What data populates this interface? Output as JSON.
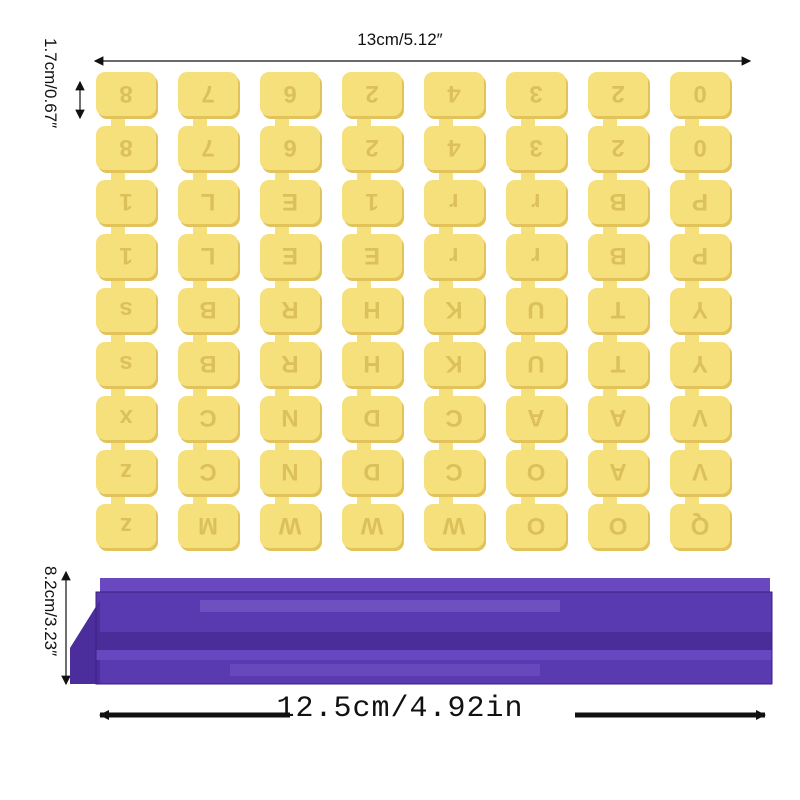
{
  "dimensions": {
    "top_width": "13cm/5.12″",
    "piece_height": "1.7cm/0.67″",
    "bar_height": "8.2cm/3.23″",
    "bar_width": "12.5cm/4.92in"
  },
  "colors": {
    "stamp_yellow": "#f6e07c",
    "stamp_shadow": "#e2c25a",
    "letter_shade": "#dcc05a",
    "bar_purple": "#5a3ab0",
    "bar_dark": "#432590",
    "bar_light": "#7a5cc8"
  },
  "stamp_sheet": {
    "columns": [
      [
        "8",
        "8",
        "1",
        "1",
        "s",
        "s",
        "x",
        "z",
        "z"
      ],
      [
        "7",
        "7",
        "L",
        "L",
        "B",
        "B",
        "C",
        "C",
        "M"
      ],
      [
        "6",
        "6",
        "E",
        "E",
        "R",
        "R",
        "N",
        "N",
        "W"
      ],
      [
        "2",
        "2",
        "1",
        "E",
        "H",
        "H",
        "D",
        "D",
        "W"
      ],
      [
        "4",
        "4",
        "r",
        "r",
        "K",
        "K",
        "C",
        "C",
        "W"
      ],
      [
        "3",
        "3",
        "r",
        "r",
        "U",
        "U",
        "A",
        "O",
        "O"
      ],
      [
        "2",
        "2",
        "B",
        "B",
        "T",
        "T",
        "A",
        "A",
        "O"
      ],
      [
        "0",
        "0",
        "P",
        "P",
        "Y",
        "Y",
        "V",
        "V",
        "Q"
      ]
    ]
  },
  "bar": {
    "shape": "purple-press-bar"
  }
}
